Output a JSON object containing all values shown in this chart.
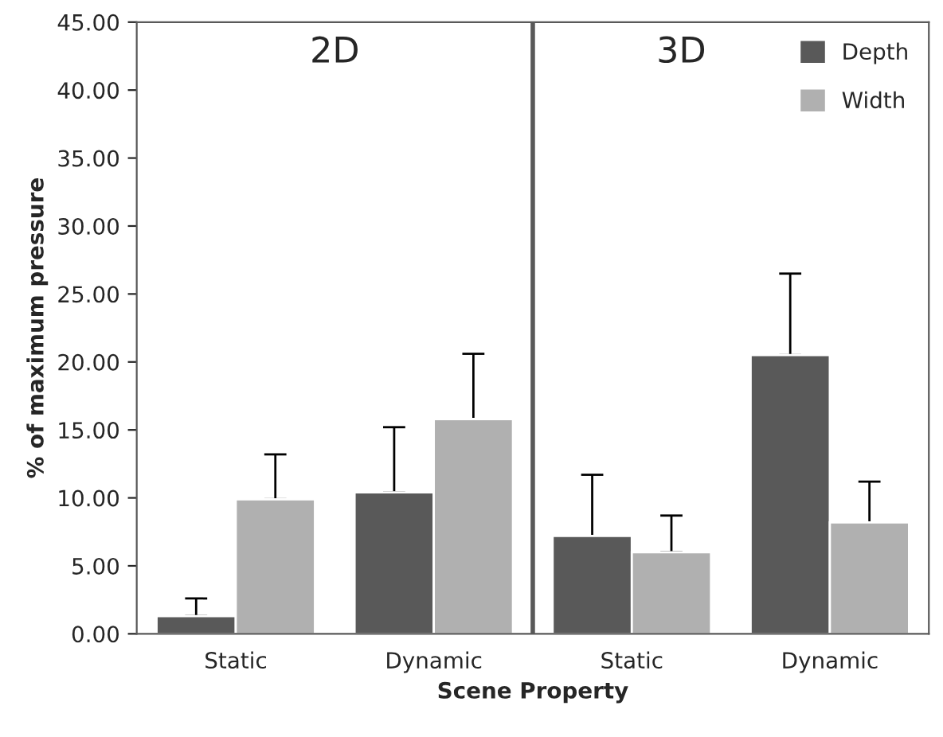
{
  "chart_data": {
    "type": "bar",
    "xlabel": "Scene Property",
    "ylabel": "% of maximum pressure",
    "categories": [
      "Static",
      "Dynamic",
      "Static",
      "Dynamic"
    ],
    "series": [
      {
        "name": "Depth",
        "color": "#595959",
        "values": [
          1.3,
          10.4,
          7.2,
          20.5
        ],
        "errors": [
          [
            1.3,
            2.6
          ],
          [
            10.4,
            15.2
          ],
          [
            7.2,
            11.7
          ],
          [
            20.5,
            26.5
          ]
        ]
      },
      {
        "name": "Width",
        "color": "#b0b0b0",
        "values": [
          9.9,
          15.8,
          6.0,
          8.2
        ],
        "errors": [
          [
            9.9,
            13.2
          ],
          [
            15.8,
            20.6
          ],
          [
            6.0,
            8.7
          ],
          [
            8.2,
            11.2
          ]
        ]
      }
    ],
    "ylim": [
      0,
      45
    ],
    "yticks": [
      {
        "value": 0,
        "label": "0.00"
      },
      {
        "value": 5,
        "label": "5.00"
      },
      {
        "value": 10,
        "label": "10.00"
      },
      {
        "value": 15,
        "label": "15.00"
      },
      {
        "value": 20,
        "label": "20.00"
      },
      {
        "value": 25,
        "label": "25.00"
      },
      {
        "value": 30,
        "label": "30.00"
      },
      {
        "value": 35,
        "label": "35.00"
      },
      {
        "value": 40,
        "label": "40.00"
      },
      {
        "value": 45,
        "label": "45.00"
      }
    ],
    "annotations": [
      "2D",
      "3D"
    ],
    "grid": false,
    "legend": "top right"
  }
}
